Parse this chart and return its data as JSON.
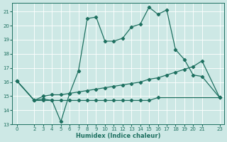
{
  "xlabel": "Humidex (Indice chaleur)",
  "bg_color": "#cde8e5",
  "line_color": "#1e7060",
  "grid_color": "#ffffff",
  "xlim": [
    -0.5,
    23.5
  ],
  "ylim": [
    13,
    21.6
  ],
  "yticks": [
    13,
    14,
    15,
    16,
    17,
    18,
    19,
    20,
    21
  ],
  "xticks": [
    0,
    2,
    3,
    4,
    5,
    6,
    7,
    8,
    9,
    10,
    11,
    12,
    13,
    14,
    15,
    16,
    17,
    18,
    19,
    20,
    21,
    23
  ],
  "line1_x": [
    0,
    2,
    3,
    4,
    5,
    6,
    7,
    8,
    9,
    10,
    11,
    12,
    13,
    14,
    15,
    16,
    17,
    18,
    19,
    20,
    21,
    23
  ],
  "line1_y": [
    16.1,
    14.7,
    14.8,
    14.7,
    13.2,
    15.2,
    16.8,
    20.5,
    20.6,
    18.9,
    18.9,
    19.1,
    19.9,
    20.1,
    21.3,
    20.8,
    21.1,
    18.3,
    17.6,
    16.5,
    16.4,
    14.9
  ],
  "line2_x": [
    0,
    2,
    3,
    4,
    5,
    6,
    7,
    8,
    9,
    10,
    11,
    12,
    13,
    14,
    15,
    16,
    23
  ],
  "line2_y": [
    16.1,
    14.7,
    14.7,
    14.7,
    14.7,
    14.7,
    14.7,
    14.7,
    14.7,
    14.7,
    14.7,
    14.7,
    14.7,
    14.7,
    14.7,
    14.9,
    14.9
  ],
  "line3_x": [
    0,
    2,
    3,
    4,
    5,
    6,
    7,
    8,
    9,
    10,
    11,
    12,
    13,
    14,
    15,
    16,
    17,
    18,
    19,
    20,
    21,
    23
  ],
  "line3_y": [
    16.1,
    14.7,
    15.0,
    15.1,
    15.1,
    15.2,
    15.3,
    15.4,
    15.5,
    15.6,
    15.7,
    15.8,
    15.9,
    16.0,
    16.2,
    16.3,
    16.5,
    16.7,
    16.9,
    17.1,
    17.5,
    14.9
  ]
}
